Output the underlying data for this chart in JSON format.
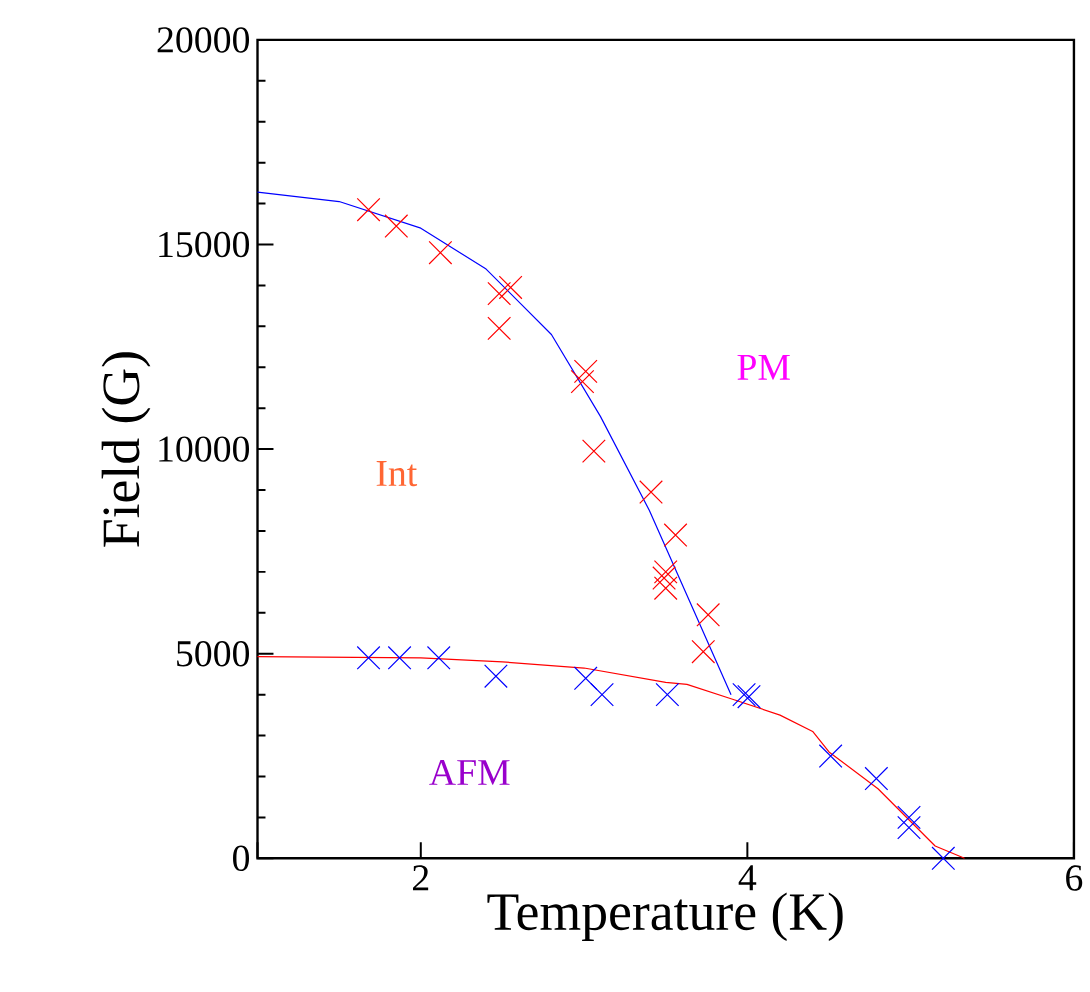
{
  "chart_data": {
    "type": "scatter",
    "xlabel": "Temperature (K)",
    "ylabel": "Field (G)",
    "xlim": [
      1,
      6
    ],
    "ylim": [
      0,
      20000
    ],
    "xticks": [
      {
        "value": 1,
        "label": null
      },
      2,
      4,
      6
    ],
    "yticks": [
      0,
      5000,
      10000,
      15000,
      20000
    ],
    "grid": false,
    "marker": "cross",
    "series": [
      {
        "color": "#ff0000",
        "x": [
          1.68,
          1.85,
          2.12,
          2.55,
          2.48,
          2.48,
          3.01,
          2.99,
          3.06,
          3.41,
          3.56,
          3.5,
          3.49,
          3.5,
          3.76,
          3.73
        ],
        "values": [
          15850,
          15450,
          14800,
          13950,
          13800,
          12950,
          11900,
          11650,
          9950,
          8950,
          7900,
          7000,
          6850,
          6600,
          5950,
          5050
        ]
      },
      {
        "color": "#0000ff",
        "x": [
          1.68,
          1.87,
          2.11,
          2.46,
          3.01,
          3.11,
          3.51,
          3.98,
          4.01,
          4.51,
          4.79,
          4.99,
          4.99,
          5.2
        ],
        "values": [
          4900,
          4900,
          4900,
          4450,
          4400,
          4000,
          4000,
          4000,
          3950,
          2500,
          1950,
          1000,
          750,
          0
        ]
      },
      {
        "type": "line",
        "color": "#0000ff",
        "marker": "none",
        "x": [
          1,
          1.5,
          2,
          2.4,
          2.8,
          3.1,
          3.4,
          3.7,
          3.9
        ],
        "values": [
          16280,
          16050,
          15400,
          14400,
          12800,
          10800,
          8500,
          5800,
          4000
        ]
      },
      {
        "type": "line",
        "color": "#ff0000",
        "marker": "none",
        "x": [
          1,
          2,
          2.5,
          3,
          3.5,
          3.63,
          3.9,
          4.2,
          4.4,
          4.5,
          4.8,
          5.0,
          5.15,
          5.33
        ],
        "values": [
          4930,
          4900,
          4800,
          4650,
          4300,
          4250,
          3900,
          3500,
          3100,
          2600,
          1700,
          900,
          300,
          0
        ]
      }
    ],
    "annotations": [
      "PM",
      "Int",
      "AFM"
    ]
  }
}
